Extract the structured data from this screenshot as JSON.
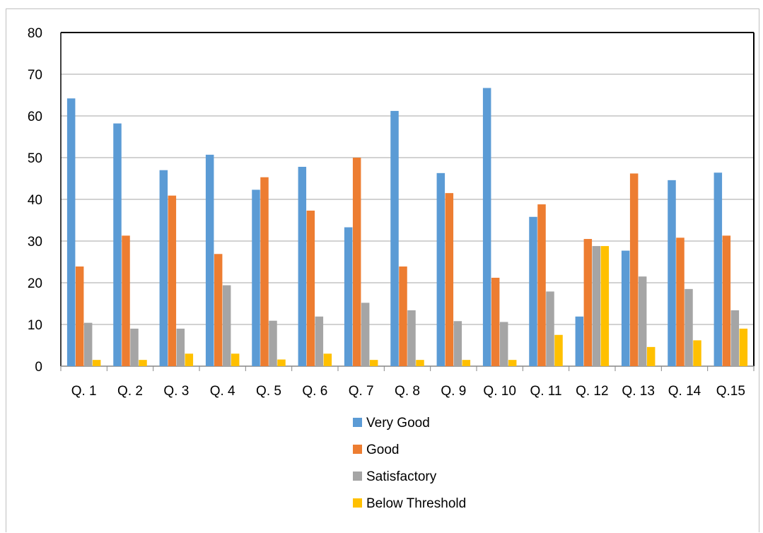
{
  "chart_data": {
    "type": "bar",
    "title": "",
    "xlabel": "",
    "ylabel": "",
    "ylim": [
      0,
      80
    ],
    "yticks": [
      0,
      10,
      20,
      30,
      40,
      50,
      60,
      70,
      80
    ],
    "grid": true,
    "legend_position": "bottom",
    "categories": [
      "Q. 1",
      "Q. 2",
      "Q. 3",
      "Q. 4",
      "Q. 5",
      "Q. 6",
      "Q. 7",
      "Q. 8",
      "Q. 9",
      "Q. 10",
      "Q. 11",
      "Q. 12",
      "Q. 13",
      "Q. 14",
      "Q.15"
    ],
    "series": [
      {
        "name": "Very Good",
        "color": "#5B9BD5",
        "values": [
          64.2,
          58.2,
          47.0,
          50.7,
          42.3,
          47.8,
          33.3,
          61.2,
          46.3,
          66.7,
          35.8,
          11.9,
          27.7,
          44.6,
          46.4
        ]
      },
      {
        "name": "Good",
        "color": "#ED7D31",
        "values": [
          23.9,
          31.3,
          40.9,
          26.9,
          45.3,
          37.3,
          50.0,
          23.9,
          41.5,
          21.2,
          38.8,
          30.5,
          46.2,
          30.8,
          31.3
        ]
      },
      {
        "name": "Satisfactory",
        "color": "#A5A5A5",
        "values": [
          10.4,
          9.0,
          9.0,
          19.4,
          10.9,
          11.9,
          15.2,
          13.4,
          10.8,
          10.6,
          17.9,
          28.8,
          21.5,
          18.5,
          13.4
        ]
      },
      {
        "name": "Below Threshold",
        "color": "#FFC000",
        "values": [
          1.5,
          1.5,
          3.0,
          3.0,
          1.6,
          3.0,
          1.5,
          1.5,
          1.5,
          1.5,
          7.5,
          28.8,
          4.6,
          6.2,
          9.0
        ]
      }
    ]
  }
}
